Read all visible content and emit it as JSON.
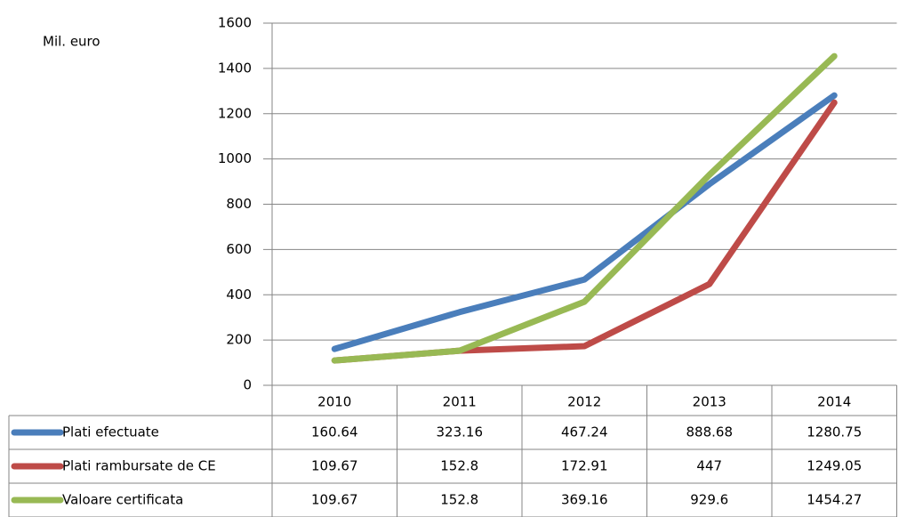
{
  "chart_data": {
    "type": "line",
    "y_axis_label": "Mil. euro",
    "categories": [
      "2010",
      "2011",
      "2012",
      "2013",
      "2014"
    ],
    "series": [
      {
        "name": "Plati efectuate",
        "color": "#4a7ebb",
        "values": [
          160.64,
          323.16,
          467.24,
          888.68,
          1280.75
        ]
      },
      {
        "name": "Plati rambursate de CE",
        "color": "#be4b48",
        "values": [
          109.67,
          152.8,
          172.91,
          447,
          1249.05
        ]
      },
      {
        "name": "Valoare certificata",
        "color": "#98b954",
        "values": [
          109.67,
          152.8,
          369.16,
          929.6,
          1454.27
        ]
      }
    ],
    "ylim": [
      0,
      1600
    ],
    "yticks": [
      0,
      200,
      400,
      600,
      800,
      1000,
      1200,
      1400,
      1600
    ],
    "grid": true,
    "data_table": true
  }
}
